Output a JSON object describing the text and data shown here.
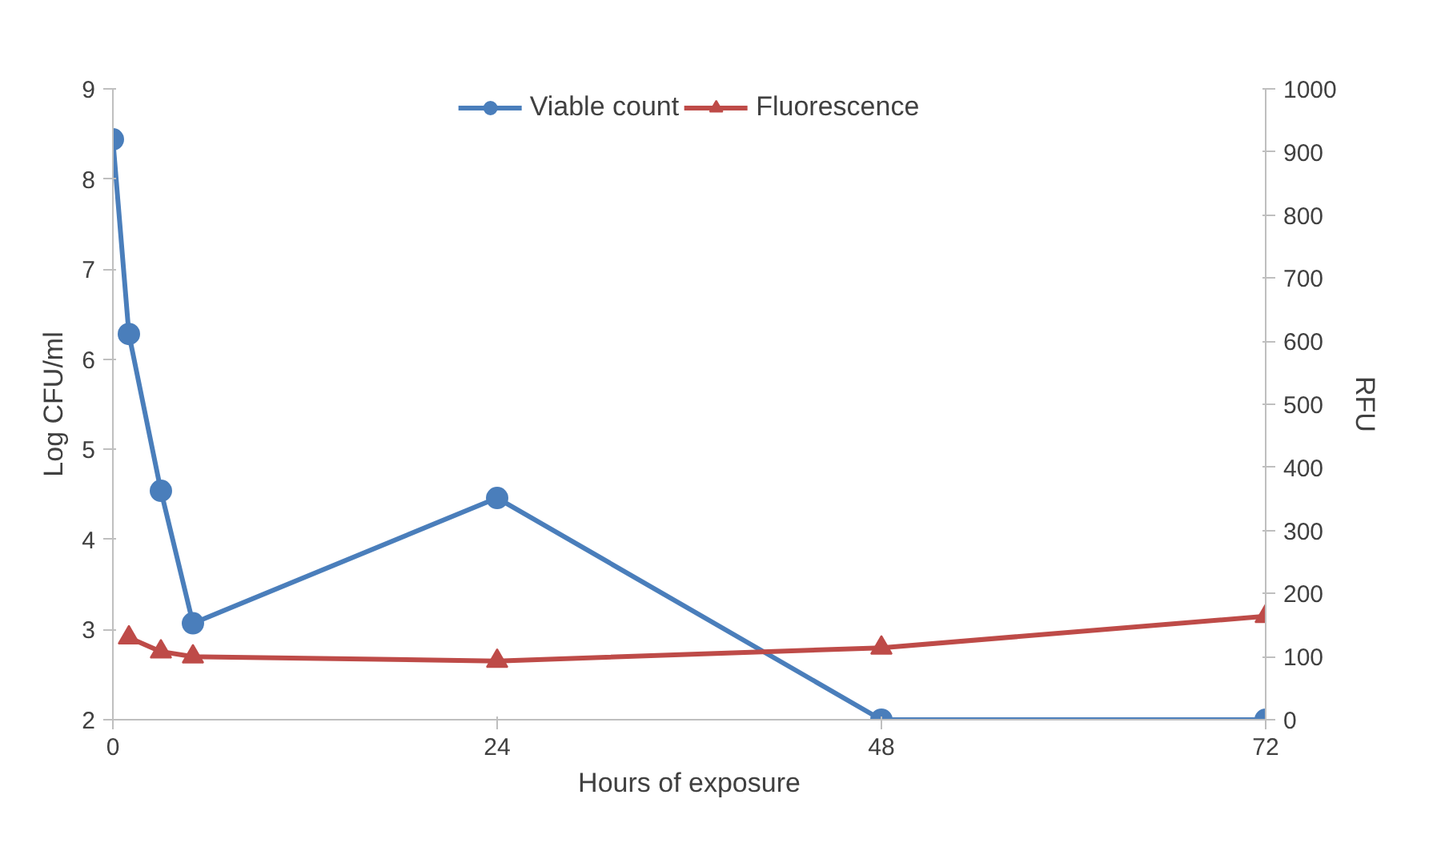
{
  "chart_data": {
    "type": "line",
    "xlabel": "Hours of exposure",
    "ylabel": "Log CFU/ml",
    "y2label": "RFU",
    "xlim": [
      0,
      72
    ],
    "xticks": [
      0,
      24,
      48,
      72
    ],
    "ylim": [
      2,
      9
    ],
    "yticks": [
      2,
      3,
      4,
      5,
      6,
      7,
      8,
      9
    ],
    "y2lim": [
      0,
      1000
    ],
    "y2ticks": [
      0,
      100,
      200,
      300,
      400,
      500,
      600,
      700,
      800,
      900,
      1000
    ],
    "grid": false,
    "legend": "top",
    "series": [
      {
        "name": "Viable count",
        "color": "#4a7ebb",
        "marker": "circle",
        "x": [
          0,
          1,
          3,
          5,
          24,
          48,
          72
        ],
        "values": [
          8.44,
          6.28,
          4.54,
          3.07,
          4.46,
          2,
          2
        ]
      },
      {
        "name": "Fluorescence",
        "color": "#be4b48",
        "marker": "triangle",
        "axis": "y2",
        "x": [
          1,
          3,
          5,
          24,
          48,
          72
        ],
        "values": [
          130,
          108,
          100,
          93,
          114,
          164
        ]
      }
    ]
  }
}
